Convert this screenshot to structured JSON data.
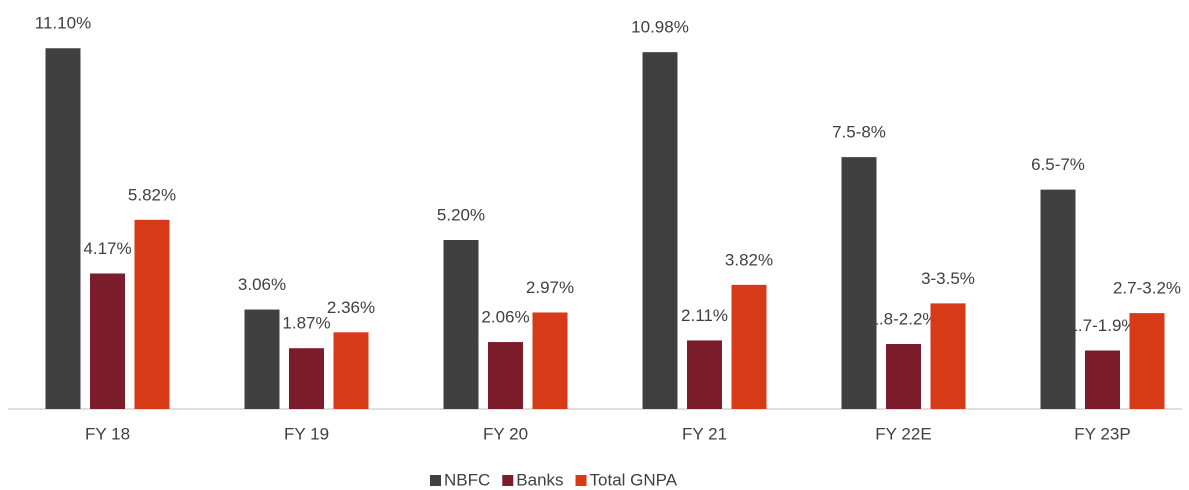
{
  "chart_data": {
    "type": "bar",
    "categories": [
      "FY 18",
      "FY 19",
      "FY 20",
      "FY 21",
      "FY 22E",
      "FY 23P"
    ],
    "series": [
      {
        "name": "NBFC",
        "color": "#404040",
        "values": [
          11.1,
          3.06,
          5.2,
          10.98,
          7.75,
          6.75
        ],
        "value_labels": [
          "11.10%",
          "3.06%",
          "5.20%",
          "10.98%",
          "7.5-8%",
          "6.5-7%"
        ]
      },
      {
        "name": "Banks",
        "color": "#7b1c2b",
        "values": [
          4.17,
          1.87,
          2.06,
          2.11,
          2.0,
          1.8
        ],
        "value_labels": [
          "4.17%",
          "1.87%",
          "2.06%",
          "2.11%",
          "1.8-2.2%",
          "1.7-1.9%"
        ]
      },
      {
        "name": "Total GNPA",
        "color": "#d63a17",
        "values": [
          5.82,
          2.36,
          2.97,
          3.82,
          3.25,
          2.95
        ],
        "value_labels": [
          "5.82%",
          "2.36%",
          "2.97%",
          "3.82%",
          "3-3.5%",
          "2.7-3.2%"
        ]
      }
    ],
    "ylim": [
      0,
      12
    ]
  }
}
